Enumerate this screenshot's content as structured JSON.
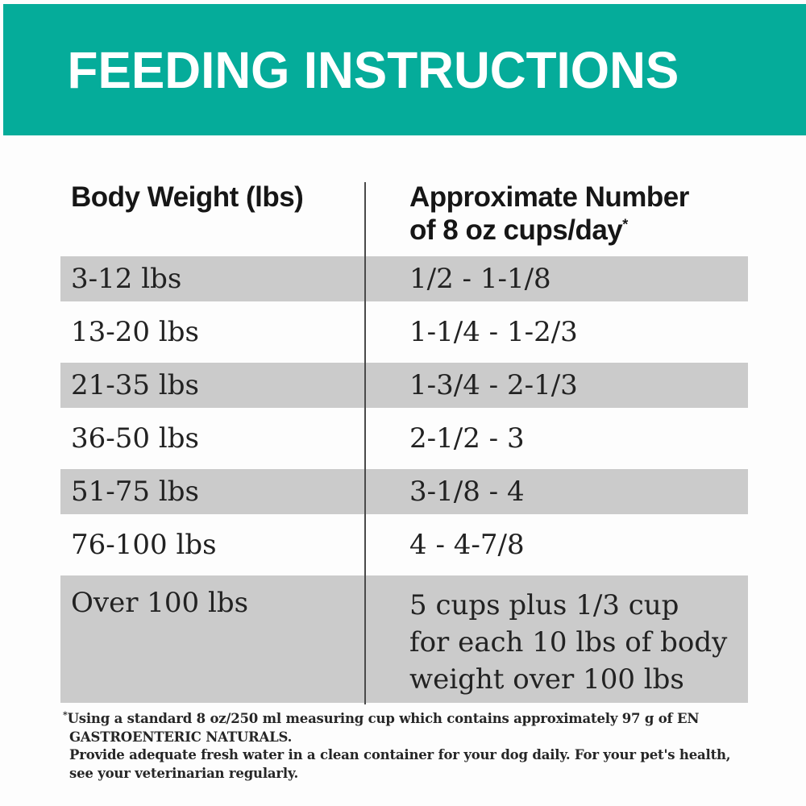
{
  "banner": {
    "title": "FEEDING INSTRUCTIONS",
    "bg_color": "#05ac9a",
    "text_color": "#ffffff"
  },
  "table": {
    "columns": {
      "left_header": "Body Weight (lbs)",
      "right_header_line1": "Approximate Number",
      "right_header_line2": "of 8 oz cups/day",
      "right_header_superscript": "*"
    },
    "shaded_row_color": "#cbcbcb",
    "rows": [
      {
        "weight": "3-12 lbs",
        "cups": "1/2 - 1-1/8",
        "shaded": true
      },
      {
        "weight": "13-20 lbs",
        "cups": "1-1/4 - 1-2/3",
        "shaded": false
      },
      {
        "weight": "21-35 lbs",
        "cups": "1-3/4 - 2-1/3",
        "shaded": true
      },
      {
        "weight": "36-50 lbs",
        "cups": "2-1/2 - 3",
        "shaded": false
      },
      {
        "weight": "51-75 lbs",
        "cups": "3-1/8 - 4",
        "shaded": true
      },
      {
        "weight": "76-100 lbs",
        "cups": "4 - 4-7/8",
        "shaded": false
      },
      {
        "weight": "Over 100 lbs",
        "cups": "5 cups plus 1/3 cup\nfor each 10 lbs of body\nweight over 100 lbs",
        "shaded": true
      }
    ]
  },
  "footnote": {
    "superscript": "*",
    "line1": "Using a standard 8 oz/250 ml measuring cup which contains approximately 97 g of EN GASTROENTERIC NATURALS.",
    "line2": "Provide adequate fresh water in a clean container for your dog daily. For your pet's health, see your veterinarian regularly."
  }
}
